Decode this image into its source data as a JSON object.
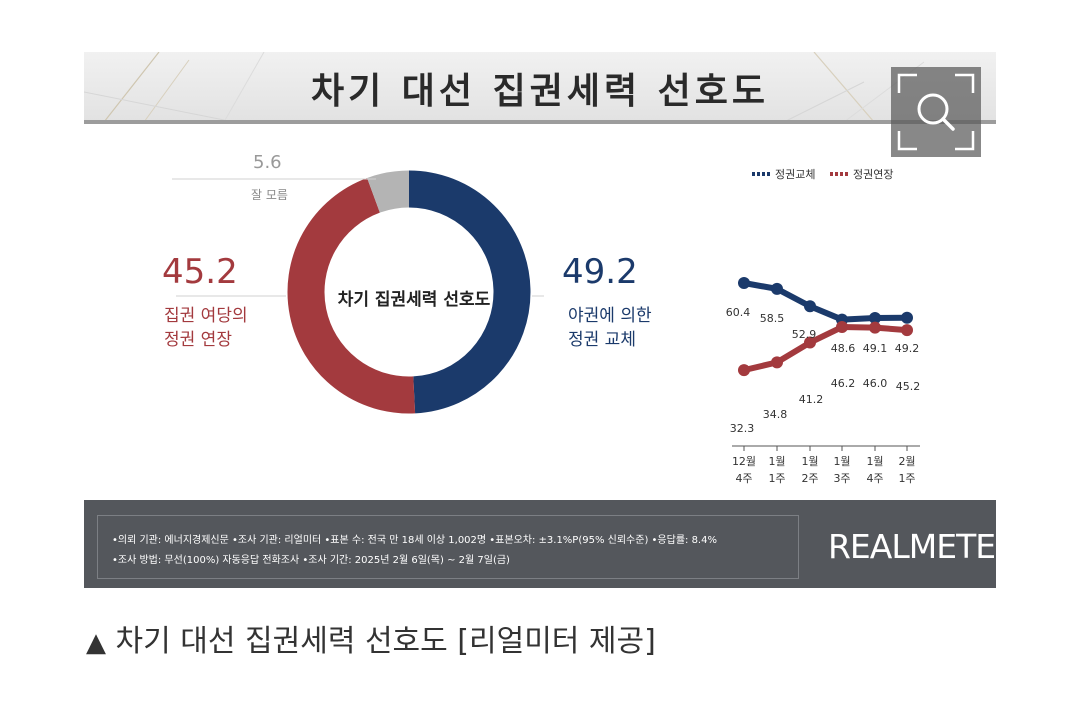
{
  "header": {
    "title": "차기 대선 집권세력 선호도"
  },
  "zoom_button": {
    "icon": "magnifier-icon"
  },
  "colors": {
    "blue": "#1b3a6b",
    "red": "#a33a3e",
    "gray": "#b4b4b4",
    "footer_bg": "#54575c"
  },
  "chart_data": [
    {
      "type": "pie",
      "center_label": "차기 집권세력 선호도",
      "slices": [
        {
          "label_lines": [
            "야권에 의한",
            "정권 교체"
          ],
          "value": 49.2,
          "value_text": "49.2",
          "color": "#1b3a6b"
        },
        {
          "label_lines": [
            "집권 여당의",
            "정권 연장"
          ],
          "value": 45.2,
          "value_text": "45.2",
          "color": "#a33a3e"
        },
        {
          "label_lines": [
            "잘 모름"
          ],
          "value": 5.6,
          "value_text": "5.6",
          "color": "#b4b4b4"
        }
      ]
    },
    {
      "type": "line",
      "legend": [
        "정권교체",
        "정권연장"
      ],
      "categories": [
        [
          "12월",
          "4주"
        ],
        [
          "1월",
          "1주"
        ],
        [
          "1월",
          "2주"
        ],
        [
          "1월",
          "3주"
        ],
        [
          "1월",
          "4주"
        ],
        [
          "2월",
          "1주"
        ]
      ],
      "series": [
        {
          "name": "정권교체",
          "color": "#1b3a6b",
          "values": [
            60.4,
            58.5,
            52.9,
            48.6,
            49.1,
            49.2
          ],
          "labels": [
            "60.4",
            "58.5",
            "52.9",
            "48.6",
            "49.1",
            "49.2"
          ]
        },
        {
          "name": "정권연장",
          "color": "#a33a3e",
          "values": [
            32.3,
            34.8,
            41.2,
            46.2,
            46.0,
            45.2
          ],
          "labels": [
            "32.3",
            "34.8",
            "41.2",
            "46.2",
            "46.0",
            "45.2"
          ]
        }
      ]
    }
  ],
  "footer": {
    "line1": "•의뢰 기관: 에너지경제신문 •조사 기관: 리얼미터 •표본 수: 전국 만 18세 이상 1,002명 •표본오차: ±3.1%P(95% 신뢰수준) •응답률: 8.4%",
    "line2": "•조사 방법: 무선(100%) 자동응답 전화조사 •조사 기간: 2025년 2월 6일(목) ~ 2월 7일(금)",
    "brand": "REALMETER"
  },
  "caption": {
    "marker": "▲",
    "text": "차기 대선 집권세력 선호도 [리얼미터 제공]"
  }
}
